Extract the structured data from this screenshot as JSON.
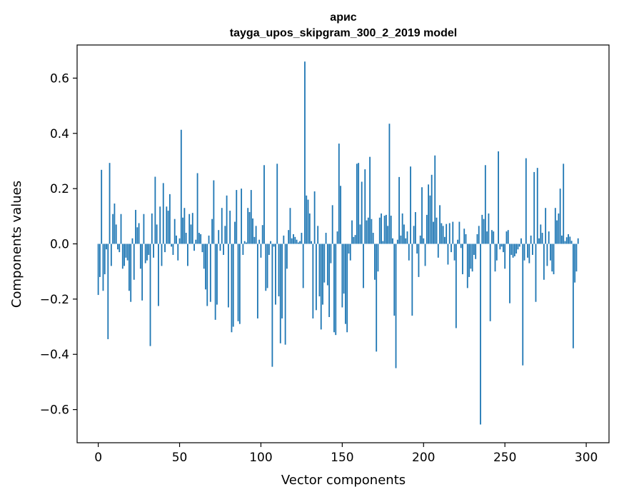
{
  "chart_data": {
    "type": "bar",
    "title_line1": "арис",
    "title_line2": "tayga_upos_skipgram_300_2_2019 model",
    "xlabel": "Vector components",
    "ylabel": "Components values",
    "xlim": [
      -13,
      314
    ],
    "ylim": [
      -0.72,
      0.72
    ],
    "xticks": [
      0,
      50,
      100,
      150,
      200,
      250,
      300
    ],
    "xtick_labels": [
      "0",
      "50",
      "100",
      "150",
      "200",
      "250",
      "300"
    ],
    "yticks": [
      -0.6,
      -0.4,
      -0.2,
      0.0,
      0.2,
      0.4,
      0.6
    ],
    "ytick_labels": [
      "−0.6",
      "−0.4",
      "−0.2",
      "0.0",
      "0.2",
      "0.4",
      "0.6"
    ],
    "bar_color": "#1f77b4",
    "values": [
      -0.185,
      -0.12,
      0.268,
      -0.17,
      -0.11,
      -0.02,
      -0.345,
      0.293,
      -0.08,
      0.108,
      0.146,
      0.07,
      -0.02,
      -0.03,
      0.108,
      -0.09,
      -0.08,
      -0.05,
      -0.06,
      -0.17,
      -0.21,
      0.02,
      -0.13,
      0.123,
      0.06,
      0.075,
      -0.09,
      -0.205,
      0.108,
      -0.07,
      -0.06,
      -0.04,
      -0.37,
      0.11,
      -0.05,
      0.243,
      0.07,
      -0.225,
      0.135,
      -0.08,
      0.22,
      -0.03,
      0.135,
      0.12,
      0.18,
      -0.01,
      -0.04,
      0.09,
      0.03,
      -0.06,
      0.02,
      0.413,
      0.095,
      0.13,
      0.04,
      -0.08,
      0.108,
      0.07,
      0.112,
      -0.025,
      0.015,
      0.256,
      0.04,
      0.035,
      -0.03,
      -0.09,
      -0.165,
      -0.225,
      0.03,
      -0.21,
      0.09,
      0.23,
      -0.275,
      -0.22,
      0.05,
      -0.025,
      0.13,
      -0.04,
      0.065,
      0.175,
      -0.23,
      0.12,
      -0.32,
      -0.3,
      0.08,
      0.195,
      -0.28,
      -0.29,
      0.2,
      -0.04,
      0.01,
      0.005,
      0.13,
      0.115,
      0.195,
      0.092,
      0.025,
      0.065,
      -0.27,
      0.015,
      -0.05,
      0.068,
      0.285,
      -0.17,
      -0.16,
      -0.04,
      0.01,
      -0.445,
      -0.01,
      -0.22,
      0.29,
      -0.19,
      -0.36,
      -0.27,
      0.03,
      -0.365,
      -0.09,
      0.05,
      0.13,
      0.02,
      0.035,
      0.025,
      0.015,
      0.005,
      0.01,
      0.04,
      -0.16,
      0.66,
      0.175,
      0.16,
      0.11,
      0.01,
      -0.27,
      0.19,
      -0.24,
      0.065,
      -0.19,
      -0.31,
      -0.22,
      -0.14,
      0.04,
      -0.15,
      -0.265,
      -0.07,
      0.14,
      -0.32,
      -0.33,
      0.045,
      0.363,
      0.21,
      -0.23,
      -0.18,
      -0.29,
      -0.32,
      -0.035,
      -0.06,
      0.085,
      0.025,
      0.032,
      0.29,
      0.293,
      0.07,
      0.225,
      -0.16,
      0.27,
      0.085,
      0.095,
      0.315,
      0.09,
      0.04,
      -0.13,
      -0.39,
      -0.1,
      0.095,
      0.11,
      0.01,
      0.102,
      0.105,
      0.065,
      0.435,
      0.102,
      0.02,
      -0.26,
      -0.45,
      0.015,
      0.242,
      0.03,
      0.11,
      0.07,
      0.02,
      0.045,
      -0.06,
      0.28,
      -0.26,
      0.065,
      0.115,
      -0.035,
      -0.12,
      0.03,
      0.205,
      0.02,
      -0.08,
      0.105,
      0.215,
      0.175,
      0.25,
      0.08,
      0.32,
      0.095,
      -0.05,
      0.14,
      0.075,
      0.065,
      0.025,
      0.072,
      -0.075,
      0.075,
      -0.03,
      0.08,
      -0.06,
      -0.305,
      0.015,
      0.08,
      -0.015,
      -0.11,
      0.055,
      0.035,
      -0.16,
      -0.12,
      -0.09,
      -0.1,
      -0.04,
      -0.055,
      0.035,
      0.065,
      -0.654,
      0.105,
      0.09,
      0.285,
      0.045,
      0.11,
      -0.28,
      0.05,
      0.045,
      -0.1,
      -0.06,
      0.335,
      -0.02,
      -0.01,
      -0.03,
      -0.09,
      0.045,
      0.05,
      -0.215,
      -0.04,
      -0.05,
      -0.045,
      -0.035,
      -0.02,
      -0.01,
      0.02,
      -0.44,
      -0.06,
      0.31,
      -0.05,
      -0.07,
      0.03,
      -0.04,
      0.26,
      -0.21,
      0.275,
      0.02,
      0.07,
      0.04,
      -0.13,
      0.13,
      -0.08,
      0.045,
      -0.06,
      -0.1,
      -0.11,
      0.13,
      0.085,
      0.11,
      0.2,
      0.03,
      0.29,
      0.01,
      0.024,
      0.035,
      0.026,
      0.011,
      -0.378,
      -0.14,
      -0.1,
      0.02
    ]
  }
}
